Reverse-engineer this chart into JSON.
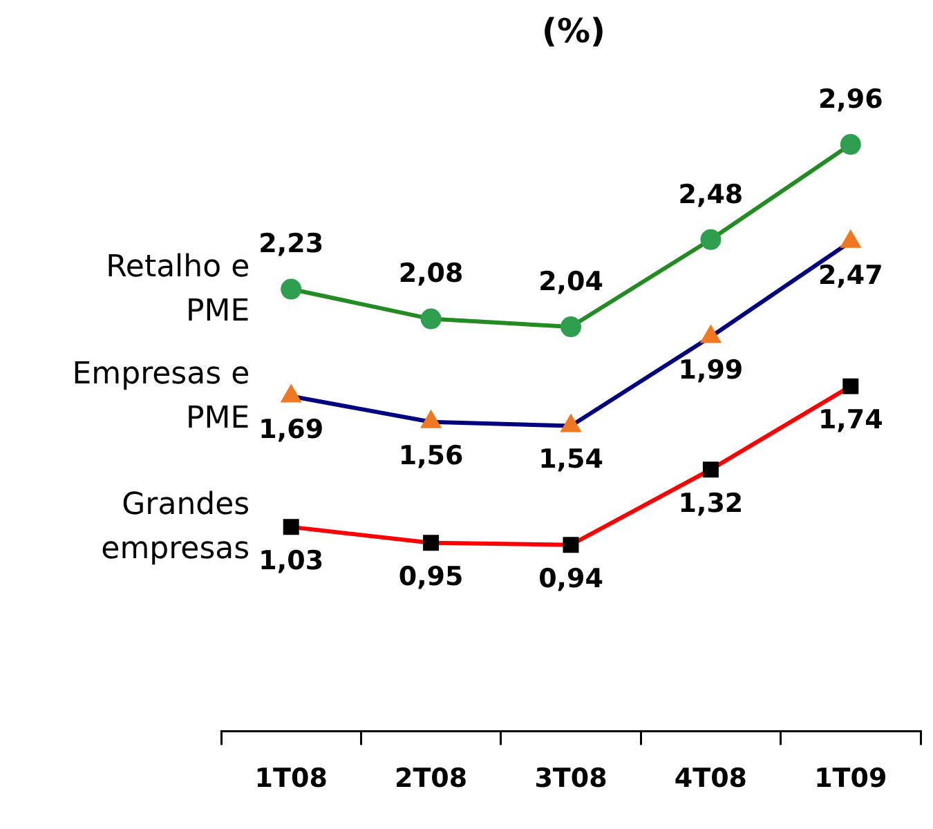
{
  "chart_data": {
    "type": "line",
    "title": "(%)",
    "categories": [
      "1T08",
      "2T08",
      "3T08",
      "4T08",
      "1T09"
    ],
    "grid": false,
    "legend": false,
    "series": [
      {
        "name": "Retalho e PME",
        "color": "#228b22",
        "colors": [
          "#2e9e4f",
          "#2e9e4f",
          "#2e9e4f",
          "#2e9e4f",
          "#2e9e4f"
        ],
        "marker": "circle",
        "values": [
          2.23,
          2.08,
          2.04,
          2.48,
          2.96
        ],
        "value_labels": [
          "2,23",
          "2,08",
          "2,04",
          "2,48",
          "2,96"
        ]
      },
      {
        "name": "Empresas e PME",
        "color": "#000080",
        "colors": [
          "#f07820",
          "#f07820",
          "#f07820",
          "#f07820",
          "#f07820"
        ],
        "marker": "triangle",
        "values": [
          1.69,
          1.56,
          1.54,
          1.99,
          2.47
        ],
        "value_labels": [
          "1,69",
          "1,56",
          "1,54",
          "1,99",
          "2,47"
        ]
      },
      {
        "name": "Grandes empresas",
        "color": "#ff0000",
        "colors": [
          "#000000",
          "#000000",
          "#000000",
          "#000000",
          "#000000"
        ],
        "marker": "square",
        "values": [
          1.03,
          0.95,
          0.94,
          1.32,
          1.74
        ],
        "value_labels": [
          "1,03",
          "0,95",
          "0,94",
          "1,32",
          "1,74"
        ]
      }
    ]
  }
}
